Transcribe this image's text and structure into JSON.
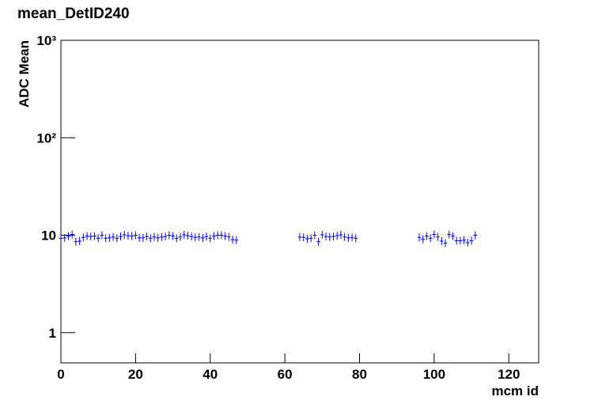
{
  "chart_data": {
    "type": "scatter",
    "title": "mean_DetID240",
    "x_label": "mcm id",
    "y_label": "ADC Mean",
    "x": [
      0,
      1,
      2,
      3,
      4,
      5,
      6,
      7,
      8,
      9,
      10,
      11,
      12,
      13,
      14,
      15,
      16,
      17,
      18,
      19,
      20,
      21,
      22,
      23,
      24,
      25,
      26,
      27,
      28,
      29,
      30,
      31,
      32,
      33,
      34,
      35,
      36,
      37,
      38,
      39,
      40,
      41,
      42,
      43,
      44,
      45,
      46,
      47,
      64,
      65,
      66,
      67,
      68,
      69,
      70,
      71,
      72,
      73,
      74,
      75,
      76,
      77,
      78,
      79,
      96,
      97,
      98,
      99,
      100,
      101,
      102,
      103,
      104,
      105,
      106,
      107,
      108,
      109,
      110,
      111
    ],
    "series": [
      {
        "name": "mean",
        "color": "#0000ff",
        "values": [
          9.3,
          9.4,
          9.8,
          10.2,
          8.6,
          8.7,
          9.5,
          9.8,
          9.7,
          9.8,
          9.3,
          10.0,
          9.3,
          9.4,
          9.6,
          9.3,
          9.7,
          10.1,
          9.9,
          9.8,
          10.0,
          9.4,
          9.4,
          9.7,
          9.3,
          9.6,
          9.4,
          9.6,
          9.7,
          10.0,
          9.8,
          9.3,
          9.6,
          10.1,
          9.9,
          9.7,
          9.5,
          9.6,
          9.4,
          9.7,
          9.3,
          9.8,
          10.0,
          10.0,
          9.8,
          9.6,
          9.0,
          8.9,
          9.6,
          9.5,
          9.2,
          9.3,
          10.0,
          8.6,
          10.1,
          9.7,
          9.6,
          9.7,
          9.9,
          10.1,
          9.6,
          9.4,
          9.5,
          9.3,
          9.5,
          9.1,
          9.8,
          9.3,
          10.2,
          9.6,
          8.7,
          8.3,
          10.2,
          9.8,
          8.8,
          8.8,
          8.9,
          8.4,
          8.8,
          10.0
        ]
      }
    ],
    "xlim": [
      0,
      128
    ],
    "xticks": [
      0,
      20,
      40,
      60,
      80,
      100,
      120
    ],
    "ylim": [
      0.49,
      1000
    ],
    "yticks": [
      1,
      10,
      {
        "value": 100,
        "label": "10²"
      },
      {
        "value": 1000,
        "label": "10³"
      }
    ],
    "ylog": true
  }
}
